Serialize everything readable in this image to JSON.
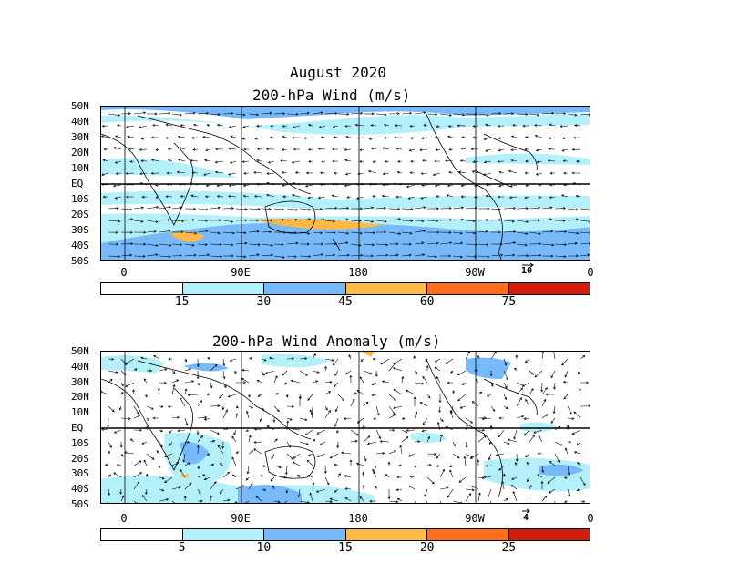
{
  "title": "August 2020",
  "panels": [
    {
      "title": "200-hPa Wind (m/s)",
      "lat_labels": [
        "50N",
        "40N",
        "30N",
        "20N",
        "10N",
        "EQ",
        "10S",
        "20S",
        "30S",
        "40S",
        "50S"
      ],
      "lon_labels": [
        "0",
        "90E",
        "180",
        "90W",
        "0"
      ],
      "reference_vector": "10",
      "colorbar": {
        "colors": [
          "#ffffff",
          "#b4f0fa",
          "#78b9fa",
          "#ffb946",
          "#ff6e1e",
          "#d21e0a"
        ],
        "ticks": [
          "15",
          "30",
          "45",
          "60",
          "75"
        ]
      }
    },
    {
      "title": "200-hPa Wind Anomaly (m/s)",
      "lat_labels": [
        "50N",
        "40N",
        "30N",
        "20N",
        "10N",
        "EQ",
        "10S",
        "20S",
        "30S",
        "40S",
        "50S"
      ],
      "lon_labels": [
        "0",
        "90E",
        "180",
        "90W",
        "0"
      ],
      "reference_vector": "4",
      "colorbar": {
        "colors": [
          "#ffffff",
          "#b4f0fa",
          "#78b9fa",
          "#ffb946",
          "#ff6e1e",
          "#d21e0a"
        ],
        "ticks": [
          "5",
          "10",
          "15",
          "20",
          "25"
        ]
      }
    }
  ]
}
